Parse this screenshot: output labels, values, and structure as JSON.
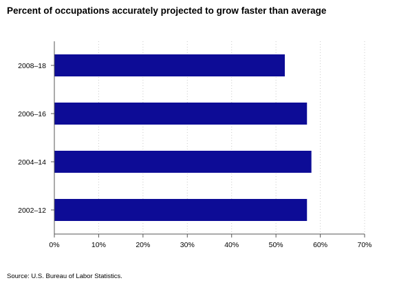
{
  "chart_data": {
    "type": "bar",
    "orientation": "horizontal",
    "title": "Percent of occupations accurately projected to grow faster than average",
    "categories": [
      "2008–18",
      "2006–16",
      "2004–14",
      "2002–12"
    ],
    "values": [
      52,
      57,
      58,
      57
    ],
    "unit": "%",
    "xlim": [
      0,
      70
    ],
    "xticks": [
      0,
      10,
      20,
      30,
      40,
      50,
      60,
      70
    ],
    "xtick_labels": [
      "0%",
      "10%",
      "20%",
      "30%",
      "40%",
      "50%",
      "60%",
      "70%"
    ],
    "grid": "vertical dotted",
    "legend": "none",
    "bar_color": "#0d0c96"
  },
  "source": "Source: U.S. Bureau of Labor Statistics."
}
